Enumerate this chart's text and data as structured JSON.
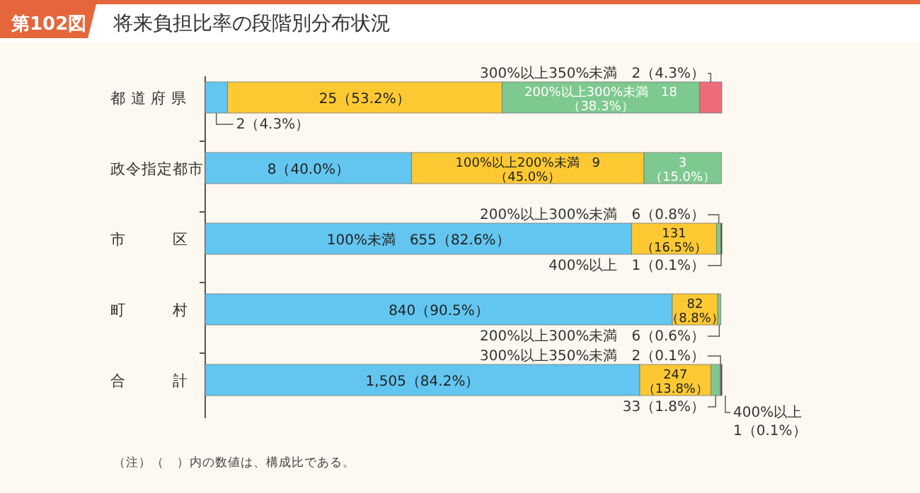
{
  "chart_data": {
    "type": "bar",
    "orientation": "horizontal",
    "stacked": true,
    "title": "将来負担比率の段階別分布状況",
    "annotations": [
      "第102図",
      "（注）（　）内の数値は、構成比である。"
    ],
    "categories": [
      "都 道 府 県",
      "政令指定都市",
      "市　　　区",
      "町　　　村",
      "合　　　計"
    ],
    "series": [
      {
        "color": "#62c6f0",
        "values": [
          4.3,
          40.0,
          82.6,
          90.5,
          84.2
        ],
        "value_labels": [
          "2（4.3%）",
          "8（40.0%）",
          "100%未満　655（82.6%）",
          "840（90.5%）",
          "1,505（84.2%）"
        ]
      },
      {
        "color": "#fdc933",
        "values": [
          53.2,
          45.0,
          16.5,
          8.8,
          13.8
        ],
        "value_labels": [
          "25（53.2%）",
          "100%以上200%未満　9（45.0%）",
          "131（16.5%）",
          "82（8.8%）",
          "247（13.8%）"
        ]
      },
      {
        "color": "#7ec98f",
        "values": [
          38.3,
          15.0,
          0.8,
          0.6,
          1.8
        ],
        "value_labels": [
          "200%以上300%未満　18（38.3%）",
          "3（15.0%）",
          "200%以上300%未満　6（0.8%）",
          "200%以上300%未満　6（0.6%）",
          "33（1.8%）"
        ]
      },
      {
        "color": "#ee6b7c",
        "values": [
          4.3,
          null,
          null,
          null,
          0.1
        ],
        "value_labels": [
          "300%以上350%未満　2（4.3%）",
          null,
          null,
          null,
          "300%以上350%未満　2（0.1%）"
        ]
      },
      {
        "color": "#333333",
        "values": [
          null,
          null,
          0.1,
          null,
          0.1
        ],
        "value_labels": [
          null,
          null,
          "400%以上　1（0.1%）",
          null,
          "400%以上　1（0.1%）"
        ]
      }
    ]
  }
}
